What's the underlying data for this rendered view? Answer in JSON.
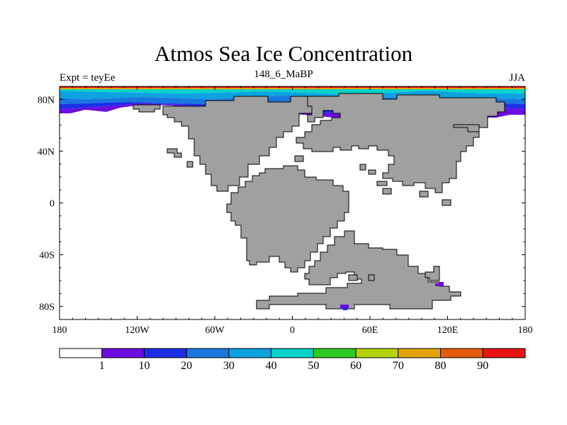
{
  "title": "Atmos Sea Ice Concentration",
  "subtitle_left": "Expt = teyEe",
  "subtitle_center": "148_6_MaBP",
  "subtitle_right": "JJA",
  "x_ticks": [
    {
      "value": -180,
      "label": "180"
    },
    {
      "value": -120,
      "label": "120W"
    },
    {
      "value": -60,
      "label": "60W"
    },
    {
      "value": 0,
      "label": "0"
    },
    {
      "value": 60,
      "label": "60E"
    },
    {
      "value": 120,
      "label": "120E"
    },
    {
      "value": 180,
      "label": "180"
    }
  ],
  "y_ticks": [
    {
      "value": 80,
      "label": "80N"
    },
    {
      "value": 40,
      "label": "40N"
    },
    {
      "value": 0,
      "label": "0"
    },
    {
      "value": -40,
      "label": "40S"
    },
    {
      "value": -80,
      "label": "80S"
    }
  ],
  "colorbar": {
    "colors": [
      "#ffffff",
      "#6a0ee0",
      "#1c2fe6",
      "#1878df",
      "#0da2e0",
      "#06d2c8",
      "#2ecc22",
      "#b4d408",
      "#e6a404",
      "#e65a0c",
      "#e81414"
    ],
    "labels": [
      "1",
      "10",
      "20",
      "30",
      "40",
      "50",
      "60",
      "70",
      "80",
      "90"
    ]
  },
  "colors": {
    "land": "#a0a0a0",
    "land_edge": "#000000",
    "ocean": "#ffffff"
  }
}
